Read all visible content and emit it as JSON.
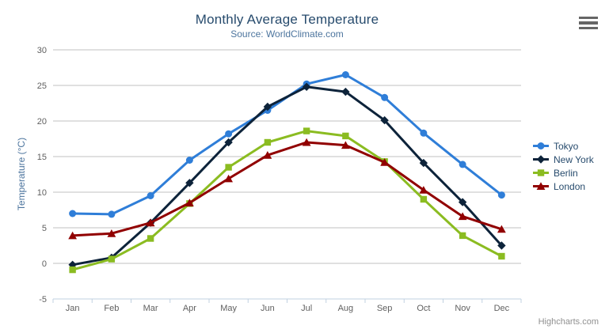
{
  "chart": {
    "title": "Monthly Average Temperature",
    "subtitle": "Source: WorldClimate.com",
    "y_axis_title": "Temperature (°C)",
    "credits": "Highcharts.com",
    "menu_icon": "hamburger-menu-icon",
    "colors": {
      "title": "#274b6d",
      "subtitle": "#4d759e",
      "y_axis_title": "#4d759e",
      "tick_label": "#606060",
      "grid_line": "#c0c0c0",
      "x_axis_line": "#c0d0e0",
      "legend_text": "#274b6d",
      "credits": "#909090",
      "menu_icon": "#666666",
      "background": "#ffffff"
    }
  },
  "chart_data": {
    "type": "line",
    "title": "Monthly Average Temperature",
    "subtitle": "Source: WorldClimate.com",
    "categories": [
      "Jan",
      "Feb",
      "Mar",
      "Apr",
      "May",
      "Jun",
      "Jul",
      "Aug",
      "Sep",
      "Oct",
      "Nov",
      "Dec"
    ],
    "xlabel": "",
    "ylabel": "Temperature (°C)",
    "ylim": [
      -5,
      30
    ],
    "ytick_step": 5,
    "grid": "horizontal",
    "legend_position": "right",
    "series": [
      {
        "name": "Tokyo",
        "color": "#2f7ed8",
        "marker": "circle",
        "values": [
          7.0,
          6.9,
          9.5,
          14.5,
          18.2,
          21.5,
          25.2,
          26.5,
          23.3,
          18.3,
          13.9,
          9.6
        ]
      },
      {
        "name": "New York",
        "color": "#0d233a",
        "marker": "diamond",
        "values": [
          -0.2,
          0.8,
          5.7,
          11.3,
          17.0,
          22.0,
          24.8,
          24.1,
          20.1,
          14.1,
          8.6,
          2.5
        ]
      },
      {
        "name": "Berlin",
        "color": "#8bbc21",
        "marker": "square",
        "values": [
          -0.9,
          0.6,
          3.5,
          8.4,
          13.5,
          17.0,
          18.6,
          17.9,
          14.3,
          9.0,
          3.9,
          1.0
        ]
      },
      {
        "name": "London",
        "color": "#910000",
        "marker": "triangle",
        "values": [
          3.9,
          4.2,
          5.7,
          8.5,
          11.9,
          15.2,
          17.0,
          16.6,
          14.2,
          10.3,
          6.6,
          4.8
        ]
      }
    ]
  }
}
